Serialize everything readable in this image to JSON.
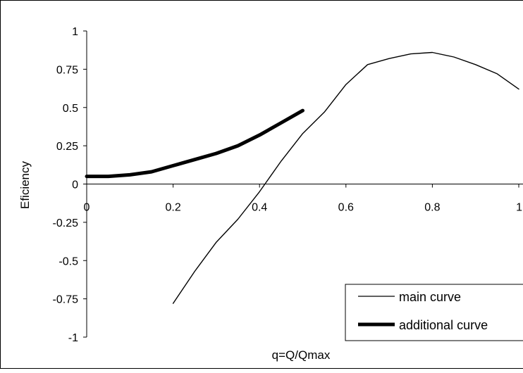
{
  "chart_data": {
    "type": "line",
    "title": "",
    "xlabel": "q=Q/Qmax",
    "ylabel": "Eficiency",
    "xlim": [
      0,
      1
    ],
    "ylim": [
      -1,
      1
    ],
    "x_ticks": [
      0,
      0.2,
      0.4,
      0.6,
      0.8,
      1
    ],
    "x_tick_labels": [
      "0",
      "0.2",
      "0.4",
      "0.6",
      "0.8",
      "1"
    ],
    "y_ticks": [
      1,
      0.75,
      0.5,
      0.25,
      0,
      -0.25,
      -0.5,
      -0.75,
      -1
    ],
    "y_tick_labels": [
      "1",
      "0.75",
      "0.5",
      "0.25",
      "0",
      "-0.25",
      "-0.5",
      "-0.75",
      "-1"
    ],
    "grid": false,
    "legend_position": "bottom-right",
    "series": [
      {
        "name": "main curve",
        "style": "thin",
        "color": "#000000",
        "x": [
          0.2,
          0.25,
          0.3,
          0.35,
          0.4,
          0.45,
          0.5,
          0.55,
          0.6,
          0.65,
          0.7,
          0.75,
          0.8,
          0.85,
          0.9,
          0.95,
          1.0
        ],
        "y": [
          -0.78,
          -0.57,
          -0.38,
          -0.23,
          -0.05,
          0.15,
          0.33,
          0.47,
          0.65,
          0.78,
          0.82,
          0.85,
          0.86,
          0.83,
          0.78,
          0.72,
          0.62
        ]
      },
      {
        "name": "additional curve",
        "style": "thick",
        "color": "#000000",
        "x": [
          0,
          0.05,
          0.1,
          0.15,
          0.2,
          0.25,
          0.3,
          0.35,
          0.4,
          0.45,
          0.5
        ],
        "y": [
          0.05,
          0.05,
          0.06,
          0.08,
          0.12,
          0.16,
          0.2,
          0.25,
          0.32,
          0.4,
          0.48
        ]
      }
    ]
  }
}
